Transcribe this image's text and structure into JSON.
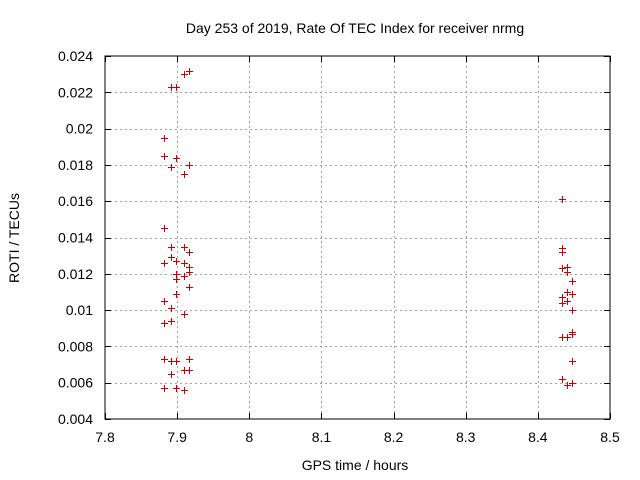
{
  "chart_data": {
    "type": "scatter",
    "title": "Day 253 of 2019, Rate Of TEC Index for receiver nrmg",
    "xlabel": "GPS time / hours",
    "ylabel": "ROTI / TECUs",
    "xlim": [
      7.8,
      8.5
    ],
    "ylim": [
      0.004,
      0.024
    ],
    "grid": true,
    "legend": "none",
    "marker": "+",
    "point_color": "#cc0000",
    "xticks": [
      7.8,
      7.9,
      8.0,
      8.1,
      8.2,
      8.3,
      8.4,
      8.5
    ],
    "xtick_labels": [
      "7.8",
      "7.9",
      "8",
      "8.1",
      "8.2",
      "8.3",
      "8.4",
      "8.5"
    ],
    "yticks": [
      0.004,
      0.006,
      0.008,
      0.01,
      0.012,
      0.014,
      0.016,
      0.018,
      0.02,
      0.022,
      0.024
    ],
    "ytick_labels": [
      "0.004",
      "0.006",
      "0.008",
      "0.01",
      "0.012",
      "0.014",
      "0.016",
      "0.018",
      "0.02",
      "0.022",
      "0.024"
    ],
    "series": [
      {
        "name": "ROTI",
        "points": [
          [
            7.91,
            0.023
          ],
          [
            7.916,
            0.0232
          ],
          [
            7.892,
            0.0223
          ],
          [
            7.899,
            0.0223
          ],
          [
            7.882,
            0.0195
          ],
          [
            7.882,
            0.0185
          ],
          [
            7.892,
            0.0179
          ],
          [
            7.899,
            0.0184
          ],
          [
            7.909,
            0.0175
          ],
          [
            7.916,
            0.018
          ],
          [
            7.882,
            0.0145
          ],
          [
            7.892,
            0.0135
          ],
          [
            7.909,
            0.0135
          ],
          [
            7.916,
            0.0132
          ],
          [
            7.882,
            0.0126
          ],
          [
            7.892,
            0.0129
          ],
          [
            7.899,
            0.0127
          ],
          [
            7.909,
            0.0126
          ],
          [
            7.916,
            0.0124
          ],
          [
            7.899,
            0.012
          ],
          [
            7.916,
            0.0121
          ],
          [
            7.909,
            0.0119
          ],
          [
            7.899,
            0.0117
          ],
          [
            7.916,
            0.0113
          ],
          [
            7.899,
            0.0109
          ],
          [
            7.882,
            0.0105
          ],
          [
            7.892,
            0.0101
          ],
          [
            7.909,
            0.0098
          ],
          [
            7.882,
            0.0093
          ],
          [
            7.892,
            0.0094
          ],
          [
            7.882,
            0.0073
          ],
          [
            7.892,
            0.0072
          ],
          [
            7.899,
            0.0072
          ],
          [
            7.916,
            0.0073
          ],
          [
            7.909,
            0.0067
          ],
          [
            7.916,
            0.0067
          ],
          [
            7.892,
            0.0065
          ],
          [
            7.882,
            0.0057
          ],
          [
            7.899,
            0.0057
          ],
          [
            7.909,
            0.0056
          ],
          [
            8.433,
            0.0161
          ],
          [
            8.433,
            0.0134
          ],
          [
            8.433,
            0.0132
          ],
          [
            8.433,
            0.0123
          ],
          [
            8.44,
            0.0124
          ],
          [
            8.44,
            0.0121
          ],
          [
            8.447,
            0.0116
          ],
          [
            8.433,
            0.0107
          ],
          [
            8.44,
            0.011
          ],
          [
            8.447,
            0.0109
          ],
          [
            8.433,
            0.0104
          ],
          [
            8.44,
            0.0105
          ],
          [
            8.447,
            0.01
          ],
          [
            8.433,
            0.0085
          ],
          [
            8.44,
            0.0085
          ],
          [
            8.447,
            0.0087
          ],
          [
            8.447,
            0.0088
          ],
          [
            8.447,
            0.0072
          ],
          [
            8.433,
            0.0062
          ],
          [
            8.44,
            0.0059
          ],
          [
            8.447,
            0.006
          ]
        ]
      }
    ]
  }
}
